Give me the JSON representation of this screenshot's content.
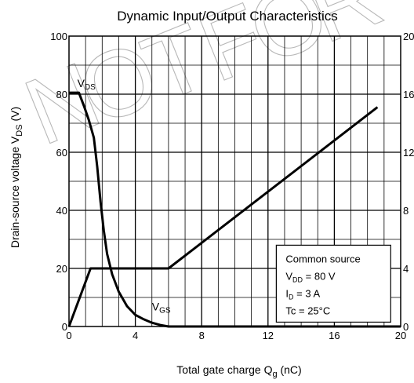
{
  "chart_data": {
    "type": "line",
    "title": "Dynamic Input/Output Characteristics",
    "xlabel": {
      "main": "Total gate charge",
      "sym": "Q",
      "sub": "g",
      "unit": "(nC)"
    },
    "ylabel": {
      "main": "Drain-source voltage",
      "sym": "V",
      "sub": "DS",
      "unit": "(V)"
    },
    "xlim": [
      0,
      20
    ],
    "ylim": [
      0,
      100
    ],
    "y2lim": [
      0,
      20
    ],
    "xticks": [
      "0",
      "4",
      "8",
      "12",
      "16",
      "20"
    ],
    "yticks": [
      "0",
      "20",
      "40",
      "60",
      "80",
      "100"
    ],
    "y2ticks": [
      "0",
      "4",
      "8",
      "12",
      "16",
      "20"
    ],
    "grid": true,
    "series": [
      {
        "label": {
          "sym": "V",
          "sub": "DS"
        },
        "axis": "left",
        "x": [
          0,
          0.6,
          0.9,
          1.2,
          1.5,
          1.7,
          1.9,
          2.1,
          2.3,
          2.6,
          3.0,
          3.5,
          4.0,
          4.5,
          5.0,
          5.5,
          6.0,
          20
        ],
        "y": [
          80.5,
          80.5,
          76,
          71,
          65,
          55,
          43,
          33,
          25,
          18,
          12,
          7,
          4,
          2.5,
          1.3,
          0.5,
          0,
          0
        ]
      },
      {
        "label": {
          "sym": "V",
          "sub": "GS"
        },
        "axis": "right",
        "x": [
          0,
          1.3,
          6.0,
          18.6
        ],
        "y": [
          0,
          4,
          4,
          15.1
        ]
      }
    ],
    "annotation": {
      "lines": [
        {
          "main": "Common source"
        },
        {
          "sym": "V",
          "sub": "DD",
          "rest": " = 80 V"
        },
        {
          "sym": "I",
          "sub": "D",
          "rest": " = 3 A"
        },
        {
          "main": "Tc = 25°C"
        }
      ]
    },
    "watermark": "NOT FOR NEW DESIGN"
  }
}
